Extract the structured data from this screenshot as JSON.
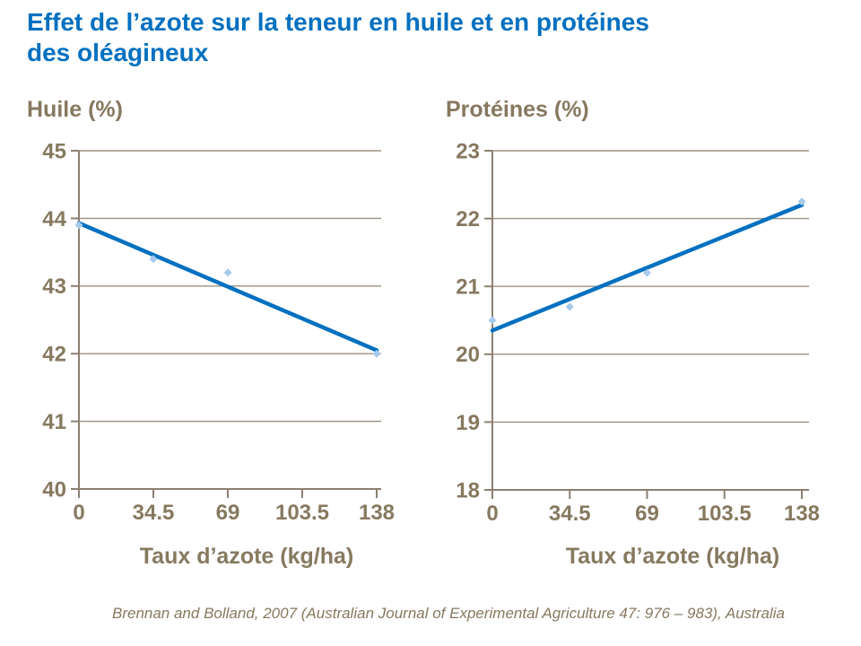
{
  "title_line1": "Effet de l’azote sur la teneur en huile et en protéines",
  "title_line2": "des oléagineux",
  "source": "Brennan and Bolland, 2007 (Australian Journal of Experimental Agriculture 47: 976 – 983), Australia",
  "colors": {
    "title_blue": "#0070C0",
    "trend_line": "#0070C0",
    "marker_fill": "#A6C9EC",
    "label_brown": "#86795F",
    "gridline": "#9C9080",
    "axis": "#8C8070"
  },
  "chart_data": [
    {
      "type": "scatter",
      "id": "huile",
      "title": "Huile (%)",
      "xlabel": "Taux d’azote (kg/ha)",
      "ylabel": "Huile (%)",
      "x_tick_labels": [
        "0",
        "34.5",
        "69",
        "103.5",
        "138"
      ],
      "x_tick_values": [
        0,
        34.5,
        69,
        103.5,
        138
      ],
      "xlim": [
        0,
        138
      ],
      "ylim": [
        40,
        45
      ],
      "y_step": 1,
      "y_tick_labels": [
        "45",
        "44",
        "43",
        "42",
        "41",
        "40"
      ],
      "points": [
        [
          0,
          43.9
        ],
        [
          34.5,
          43.4
        ],
        [
          69,
          43.2
        ],
        [
          138,
          42.0
        ]
      ],
      "trend": {
        "x1": 0,
        "y1": 43.93,
        "x2": 138,
        "y2": 42.05
      },
      "grid": "horizontal"
    },
    {
      "type": "scatter",
      "id": "proteines",
      "title": "Protéines (%)",
      "xlabel": "Taux d’azote (kg/ha)",
      "ylabel": "Protéines (%)",
      "x_tick_labels": [
        "0",
        "34.5",
        "69",
        "103.5",
        "138"
      ],
      "x_tick_values": [
        0,
        34.5,
        69,
        103.5,
        138
      ],
      "xlim": [
        0,
        138
      ],
      "ylim": [
        18,
        23
      ],
      "y_step": 1,
      "y_tick_labels": [
        "23",
        "22",
        "21",
        "20",
        "19",
        "18"
      ],
      "points": [
        [
          0,
          20.5
        ],
        [
          34.5,
          20.7
        ],
        [
          69,
          21.2
        ],
        [
          138,
          22.25
        ]
      ],
      "trend": {
        "x1": 0,
        "y1": 20.35,
        "x2": 138,
        "y2": 22.2
      },
      "grid": "horizontal"
    }
  ]
}
